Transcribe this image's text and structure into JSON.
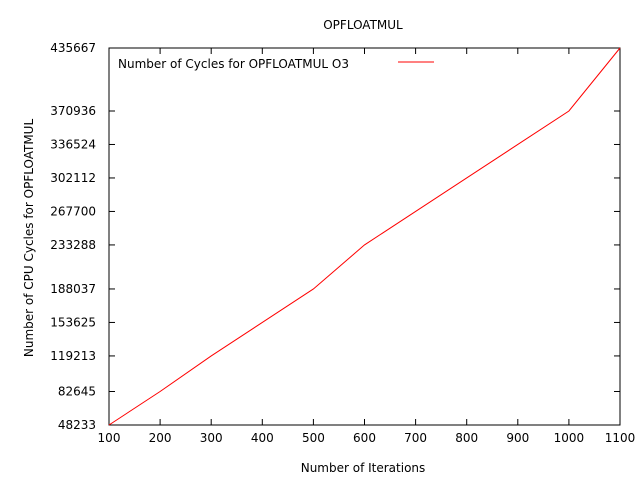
{
  "chart_data": {
    "type": "line",
    "title": "OPFLOATMUL",
    "xlabel": "Number of Iterations",
    "ylabel": "Number of CPU Cycles for OPFLOATMUL",
    "xlim": [
      100,
      1100
    ],
    "ylim": [
      48233,
      435667
    ],
    "xticks": [
      100,
      200,
      300,
      400,
      500,
      600,
      700,
      800,
      900,
      1000,
      1100
    ],
    "yticks": [
      48233,
      82645,
      119213,
      153625,
      188037,
      233288,
      267700,
      302112,
      336524,
      370936,
      435667
    ],
    "grid": false,
    "legend_position": "top-left",
    "series": [
      {
        "name": "Number of Cycles for OPFLOATMUL O3",
        "color": "#ff0000",
        "x": [
          100,
          200,
          300,
          400,
          500,
          600,
          700,
          800,
          900,
          1000,
          1100
        ],
        "y": [
          48233,
          82645,
          119213,
          153625,
          188037,
          233288,
          267700,
          302112,
          336524,
          370936,
          435667
        ]
      }
    ]
  }
}
